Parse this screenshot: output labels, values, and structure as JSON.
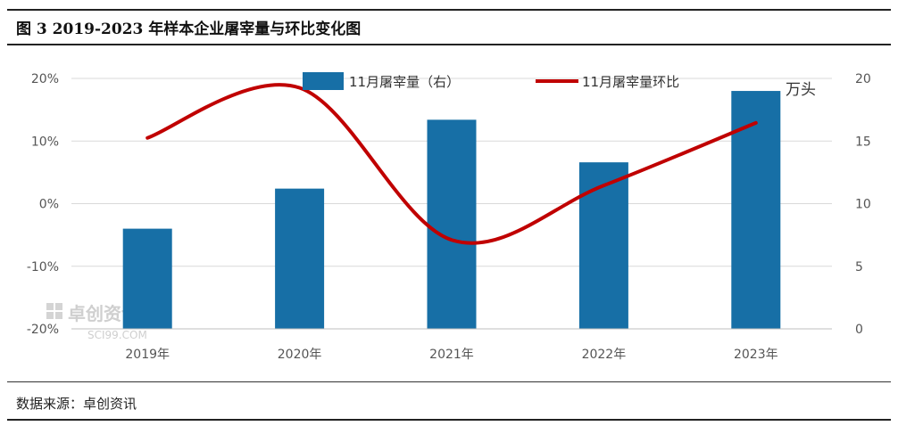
{
  "figure": {
    "title": "图 3  2019-2023 年样本企业屠宰量与环比变化图",
    "source": "数据来源：卓创资讯"
  },
  "watermark": {
    "text": "卓创资讯",
    "sub": "SCI99.COM"
  },
  "chart_data": {
    "type": "bar",
    "categories": [
      "2019年",
      "2020年",
      "2021年",
      "2022年",
      "2023年"
    ],
    "series": [
      {
        "name": "11月屠宰量（右）",
        "type": "bar",
        "axis": "right",
        "color": "#176fa6",
        "values": [
          8.0,
          11.2,
          16.7,
          13.3,
          19.0
        ]
      },
      {
        "name": "11月屠宰量环比",
        "type": "line",
        "axis": "left",
        "color": "#c00000",
        "smooth": true,
        "values": [
          10.5,
          18.5,
          -5.8,
          2.9,
          12.9
        ]
      }
    ],
    "y_left": {
      "min": -20,
      "max": 20,
      "ticks": [
        "20%",
        "10%",
        "0%",
        "-10%",
        "-20%"
      ]
    },
    "y_right": {
      "min": 0,
      "max": 20,
      "ticks": [
        "20",
        "15",
        "10",
        "5",
        "0"
      ],
      "unit": "万头"
    },
    "legend_position": "top-center",
    "grid": true
  }
}
